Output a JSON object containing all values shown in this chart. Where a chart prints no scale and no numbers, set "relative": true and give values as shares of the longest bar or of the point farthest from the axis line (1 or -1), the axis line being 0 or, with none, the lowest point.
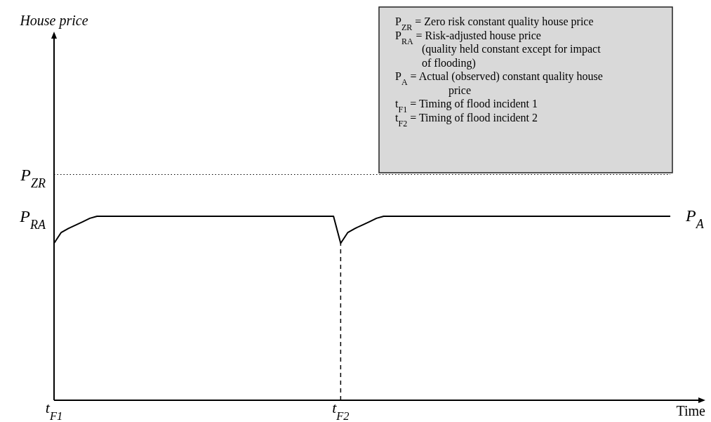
{
  "chart_data": {
    "type": "line",
    "relative": true,
    "xlabel": "Time",
    "categories": [
      "t$_{F1}$",
      null,
      null,
      null,
      null,
      null,
      null,
      null,
      null,
      null,
      null,
      null,
      null,
      null,
      null,
      null,
      null,
      null,
      null,
      null,
      null,
      null,
      null,
      null,
      null,
      null,
      null,
      null,
      null,
      null,
      null,
      null,
      null,
      null,
      null,
      null,
      null,
      null,
      null,
      null,
      "t$_{F2}$",
      null,
      null,
      null,
      null,
      null,
      null,
      null,
      null,
      null,
      null,
      null,
      null,
      null,
      null,
      null,
      null,
      null,
      null,
      null,
      null,
      null,
      null,
      null,
      null,
      null,
      null,
      null,
      null,
      null,
      null,
      null,
      null,
      null,
      null,
      null,
      null,
      null,
      null,
      null,
      null,
      null,
      null,
      null,
      null,
      null,
      null
    ],
    "series": [
      {
        "name": "P$_{A}$",
        "color": "#000000",
        "values": [
          0.853,
          0.912,
          0.934,
          0.952,
          0.97,
          0.989,
          1,
          1,
          1,
          1,
          1,
          1,
          1,
          1,
          1,
          1,
          1,
          1,
          1,
          1,
          1,
          1,
          1,
          1,
          1,
          1,
          1,
          1,
          1,
          1,
          1,
          1,
          1,
          1,
          1,
          1,
          1,
          1,
          1,
          1,
          0.853,
          0.912,
          0.934,
          0.952,
          0.97,
          0.989,
          1,
          1,
          1,
          1,
          1,
          1,
          1,
          1,
          1,
          1,
          1,
          1,
          1,
          1,
          1,
          1,
          1,
          1,
          1,
          1,
          1,
          1,
          1,
          1,
          1,
          1,
          1,
          1,
          1,
          1,
          1,
          1,
          1,
          1,
          1,
          1,
          1,
          1,
          1,
          1,
          1
        ]
      }
    ],
    "ref_lines": [
      {
        "axis": "y",
        "value": 1.227,
        "label": "P$_{ZR}$",
        "line_style": "dotted",
        "color": "#000000"
      },
      {
        "axis": "x",
        "value": "t$_{F2}$",
        "line_style": "dashed",
        "color": "#000000"
      }
    ],
    "annotations": [
      "House price",
      "P$_{RA}$",
      "P$_{ZR}$ = Zero risk constant quality house price",
      "P$_{RA}$ = Risk-adjusted house price",
      "(quality held constant except for impact",
      "of flooding)",
      "P$_{A}$ = Actual (observed) constant quality house",
      "price",
      "t$_{F1}$ = Timing of flood incident 1",
      "t$_{F2}$ = Timing of flood incident 2"
    ],
    "grid": false,
    "marker": "none",
    "line_style": "solid"
  }
}
